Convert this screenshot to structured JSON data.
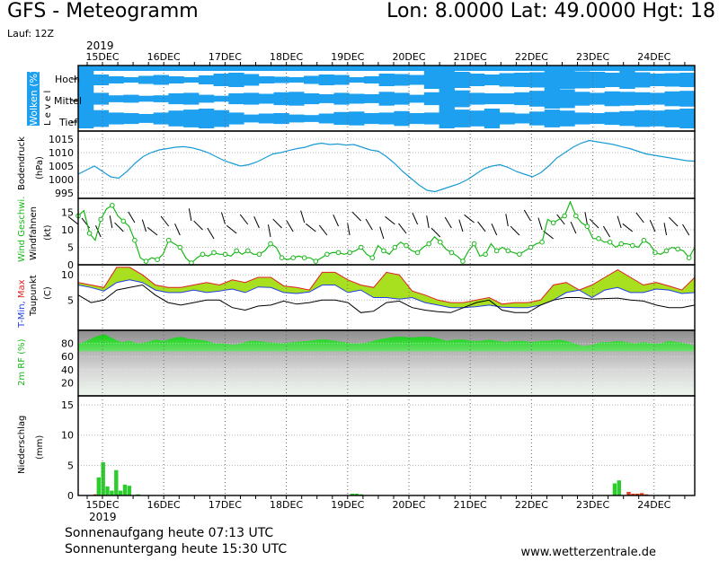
{
  "header": {
    "title": "GFS - Meteogramm",
    "location": "Lon: 8.0000  Lat: 49.0000  Hgt: 18",
    "run": "Lauf: 12Z",
    "year": "2019"
  },
  "footer": {
    "sunrise": "Sonnenaufgang heute 07:13 UTC",
    "sunset": "Sonnenuntergang heute 15:30 UTC",
    "source": "www.wetterzentrale.de"
  },
  "colors": {
    "cloud": "#1ea0f0",
    "pressure": "#1a9bd6",
    "wind": "#18b818",
    "tmin": "#2040e0",
    "tmax": "#e02020",
    "band": "#a8e020",
    "dew": "#000000",
    "rh": "#22cc22",
    "precip": "#2ccc2c",
    "precip_red": "#e04020"
  },
  "chart_data": [
    {
      "type": "heatmap",
      "panel": "clouds",
      "ylabel": "Wolken (%)",
      "ylabel2": "L e v e l",
      "levels": [
        "Hoch",
        "Mittel",
        "Tief"
      ],
      "x_labels": [
        "15DEC",
        "16DEC",
        "17DEC",
        "18DEC",
        "19DEC",
        "20DEC",
        "21DEC",
        "22DEC",
        "23DEC",
        "24DEC"
      ],
      "series": [
        {
          "name": "Hoch",
          "values": [
            100,
            60,
            40,
            30,
            45,
            55,
            40,
            30,
            50,
            70,
            80,
            65,
            40,
            35,
            30,
            45,
            60,
            55,
            30,
            40,
            70,
            65,
            55,
            100,
            100,
            90,
            70,
            60,
            75,
            80,
            85,
            100,
            100,
            95,
            90,
            80,
            100,
            85,
            70,
            75,
            80
          ]
        },
        {
          "name": "Mittel",
          "values": [
            100,
            60,
            35,
            40,
            30,
            35,
            55,
            60,
            40,
            30,
            55,
            60,
            50,
            65,
            70,
            55,
            45,
            60,
            50,
            45,
            70,
            60,
            40,
            65,
            100,
            85,
            60,
            55,
            55,
            65,
            80,
            100,
            95,
            70,
            60,
            75,
            70,
            65,
            60,
            75,
            80
          ]
        },
        {
          "name": "Tief",
          "values": [
            100,
            85,
            60,
            55,
            45,
            60,
            80,
            90,
            100,
            85,
            60,
            40,
            50,
            55,
            40,
            35,
            50,
            65,
            70,
            55,
            60,
            75,
            55,
            60,
            100,
            90,
            80,
            100,
            60,
            50,
            70,
            90,
            80,
            60,
            55,
            65,
            75,
            85,
            80,
            90,
            100
          ]
        }
      ]
    },
    {
      "type": "line",
      "panel": "pressure",
      "ylabel": "Bodendruck",
      "unit": "(hPa)",
      "yticks": [
        995,
        1000,
        1005,
        1010,
        1015
      ],
      "ylim": [
        993,
        1018
      ],
      "series": [
        {
          "values": [
            1002,
            1003.5,
            1005,
            1003,
            1001,
            1000.5,
            1003,
            1006,
            1008.5,
            1010,
            1011,
            1011.5,
            1012,
            1012.2,
            1011.8,
            1011,
            1010,
            1008.5,
            1007,
            1006,
            1005,
            1005.5,
            1006.5,
            1008,
            1009.5,
            1010,
            1010.8,
            1011.5,
            1012,
            1013,
            1013.5,
            1013,
            1013.2,
            1012.8,
            1013,
            1012,
            1011,
            1010.5,
            1008.5,
            1006,
            1003,
            1000.5,
            998,
            996,
            995.5,
            996.5,
            997.5,
            998.5,
            1000,
            1002,
            1004,
            1005,
            1005.5,
            1004.5,
            1003,
            1002,
            1001,
            1002.5,
            1005,
            1008,
            1010,
            1012,
            1013.5,
            1014.5,
            1014,
            1013.5,
            1013,
            1012.2,
            1011.5,
            1010.5,
            1009.5,
            1009,
            1008.5,
            1008,
            1007.5,
            1007,
            1006.8
          ]
        }
      ]
    },
    {
      "type": "line",
      "panel": "wind",
      "ylabel": "Wind Geschwi.",
      "ylabel2": "Windfahnen",
      "unit": "(kt)",
      "yticks": [
        0,
        5,
        10,
        15
      ],
      "ylim": [
        0,
        19
      ],
      "series": [
        {
          "name": "Wind Geschwi.",
          "values": [
            14,
            15.5,
            9,
            7,
            13,
            16,
            17,
            14,
            12.5,
            11,
            7,
            2,
            1,
            2,
            1.5,
            3,
            7,
            6,
            5,
            2,
            0.5,
            2,
            3,
            2.5,
            3.5,
            3,
            3,
            2.5,
            4,
            3,
            4,
            3,
            3,
            4,
            6,
            5,
            2,
            1.5,
            2,
            2.5,
            2,
            2,
            1,
            2,
            3,
            3.5,
            3.5,
            3,
            3.5,
            4,
            5,
            3,
            2,
            5.5,
            4,
            3,
            5,
            6.5,
            5.5,
            4,
            3.5,
            5,
            6,
            8,
            6.5,
            4.5,
            3.5,
            2.5,
            1,
            4,
            6,
            2.5,
            3,
            6,
            4,
            5,
            4,
            3.5,
            3,
            4,
            5,
            6,
            6.5,
            13,
            12,
            13,
            14,
            18,
            14,
            12,
            11,
            7.5,
            7.5,
            6.5,
            6.5,
            5,
            6,
            6,
            5.5,
            5,
            7,
            6,
            3.5,
            3,
            4,
            5,
            4.5,
            4,
            2,
            5
          ]
        }
      ]
    },
    {
      "type": "line",
      "panel": "temperature",
      "ylabel": "T-Min, Max",
      "ylabel2": "Taupunkt",
      "unit": "(C)",
      "yticks": [
        5,
        10
      ],
      "ylim": [
        -1,
        12
      ],
      "series": [
        {
          "name": "T-Min",
          "values": [
            8,
            7.5,
            6.8,
            8.5,
            9,
            8.5,
            7,
            6.5,
            6.5,
            7,
            6.5,
            6.8,
            7.2,
            6.5,
            7.6,
            7.5,
            6.5,
            6.3,
            6.6,
            8,
            8,
            6.5,
            7,
            5.5,
            5.5,
            5.2,
            5.5,
            4.5,
            4,
            3.5,
            3.5,
            3.7,
            4,
            3.6,
            3.5,
            3.5,
            4,
            5,
            6.5,
            7,
            5.5,
            7,
            7.5,
            6.5,
            6.5,
            7.2,
            7,
            6.3,
            6.5
          ]
        },
        {
          "name": "T-Max",
          "values": [
            8.5,
            8,
            7.5,
            11.5,
            11.5,
            10,
            8,
            7.5,
            7.5,
            8,
            8.5,
            8,
            9,
            8.5,
            9.5,
            9.5,
            7.8,
            7.5,
            7,
            10.5,
            10.5,
            9,
            8,
            7.5,
            10.5,
            10,
            6.8,
            6,
            5,
            4.5,
            4.5,
            5,
            5.5,
            4.2,
            4.5,
            4.5,
            5,
            8,
            8.5,
            7,
            8,
            9.5,
            11,
            9.5,
            8,
            8.5,
            7.8,
            7,
            9.5
          ]
        },
        {
          "name": "Taupunkt",
          "values": [
            6,
            4.5,
            5,
            7,
            7.5,
            8,
            6,
            4.5,
            4,
            4.5,
            5,
            5,
            3.5,
            3,
            3.8,
            4,
            4.8,
            4.2,
            4.5,
            5,
            5,
            4.5,
            2.5,
            2.8,
            4.5,
            4.8,
            3.5,
            3,
            2.7,
            2.5,
            3.5,
            4.5,
            5,
            3,
            2.5,
            2.5,
            4,
            5,
            5.5,
            5.5,
            5.2,
            5.3,
            5.4,
            5,
            4.8,
            4,
            3.5,
            3.5,
            4
          ]
        }
      ]
    },
    {
      "type": "area",
      "panel": "humidity",
      "ylabel": "2m RF (%)",
      "yticks": [
        20,
        40,
        60,
        80
      ],
      "ylim": [
        0,
        100
      ],
      "series": [
        {
          "values": [
            79,
            84,
            90,
            94,
            88,
            82,
            84,
            80,
            82,
            86,
            84,
            88,
            90,
            87,
            86,
            84,
            80,
            80,
            78,
            80,
            84,
            84,
            82,
            81,
            80,
            82,
            83,
            84,
            86,
            86,
            84,
            82,
            80,
            80,
            82,
            86,
            88,
            90,
            90,
            89,
            90,
            90,
            88,
            84,
            86,
            86,
            84,
            84,
            86,
            84,
            82,
            84,
            84,
            82,
            84,
            84,
            86,
            84,
            80,
            76,
            78,
            82,
            82,
            84,
            82,
            80,
            82,
            80,
            80,
            84,
            82,
            80,
            76
          ]
        }
      ]
    },
    {
      "type": "bar",
      "panel": "precipitation",
      "ylabel": "Niederschlag",
      "unit": "(mm)",
      "yticks": [
        0,
        5,
        10,
        15
      ],
      "ylim": [
        0,
        16.5
      ],
      "x_labels": [
        "15DEC",
        "16DEC",
        "17DEC",
        "18DEC",
        "19DEC",
        "20DEC",
        "21DEC",
        "22DEC",
        "23DEC",
        "24DEC"
      ],
      "series": [
        {
          "name": "green",
          "values": [
            0,
            0,
            0,
            3,
            5.5,
            1.5,
            0.8,
            4.2,
            0.8,
            1.8,
            1.6,
            0,
            0.2,
            0,
            0,
            0,
            0,
            0,
            0,
            0,
            0,
            0,
            0,
            0,
            0,
            0,
            0,
            0,
            0,
            0,
            0,
            0,
            0,
            0,
            0,
            0,
            0,
            0,
            0,
            0,
            0,
            0,
            0,
            0,
            0,
            0,
            0,
            0,
            0,
            0,
            0,
            0,
            0,
            0,
            0,
            0,
            0,
            0,
            0,
            0,
            0,
            0.3,
            0.3,
            0.2,
            0,
            0,
            0,
            0,
            0,
            0,
            0,
            0,
            0,
            0,
            0,
            0,
            0,
            0,
            0,
            0,
            0,
            0,
            0,
            0,
            0,
            0,
            0,
            0,
            0,
            0,
            0,
            0,
            0,
            0,
            0,
            0,
            0,
            0,
            0,
            0,
            0,
            0,
            0,
            0,
            0,
            0,
            0,
            0,
            0,
            0,
            0,
            0,
            0,
            0,
            0,
            0,
            0,
            0,
            0,
            0,
            0,
            2,
            2.5,
            0,
            0,
            0,
            0,
            0,
            0,
            0,
            0,
            0,
            0,
            0,
            0,
            0,
            0,
            0,
            0,
            0,
            0
          ]
        },
        {
          "name": "red",
          "values": [
            0,
            0,
            0.2,
            0,
            0,
            0,
            0,
            0,
            0,
            0,
            0,
            0,
            0,
            0,
            0,
            0,
            0,
            0,
            0,
            0,
            0,
            0,
            0,
            0,
            0,
            0,
            0,
            0,
            0,
            0,
            0,
            0,
            0,
            0,
            0,
            0,
            0,
            0,
            0,
            0,
            0,
            0,
            0,
            0,
            0,
            0,
            0,
            0,
            0,
            0,
            0,
            0,
            0,
            0,
            0,
            0,
            0,
            0,
            0,
            0,
            0,
            0,
            0,
            0,
            0,
            0,
            0,
            0,
            0,
            0,
            0,
            0,
            0,
            0,
            0,
            0,
            0,
            0,
            0,
            0,
            0,
            0,
            0,
            0,
            0,
            0,
            0,
            0,
            0,
            0,
            0,
            0,
            0,
            0,
            0,
            0,
            0,
            0,
            0,
            0,
            0,
            0,
            0,
            0,
            0,
            0,
            0,
            0,
            0,
            0,
            0,
            0,
            0,
            0,
            0,
            0,
            0,
            0,
            0,
            0,
            0,
            0,
            0,
            0,
            0.6,
            0.3,
            0.3,
            0.4,
            0.2,
            0,
            0,
            0,
            0,
            0,
            0,
            0,
            0,
            0,
            0,
            0,
            0,
            0,
            0
          ]
        }
      ]
    }
  ]
}
